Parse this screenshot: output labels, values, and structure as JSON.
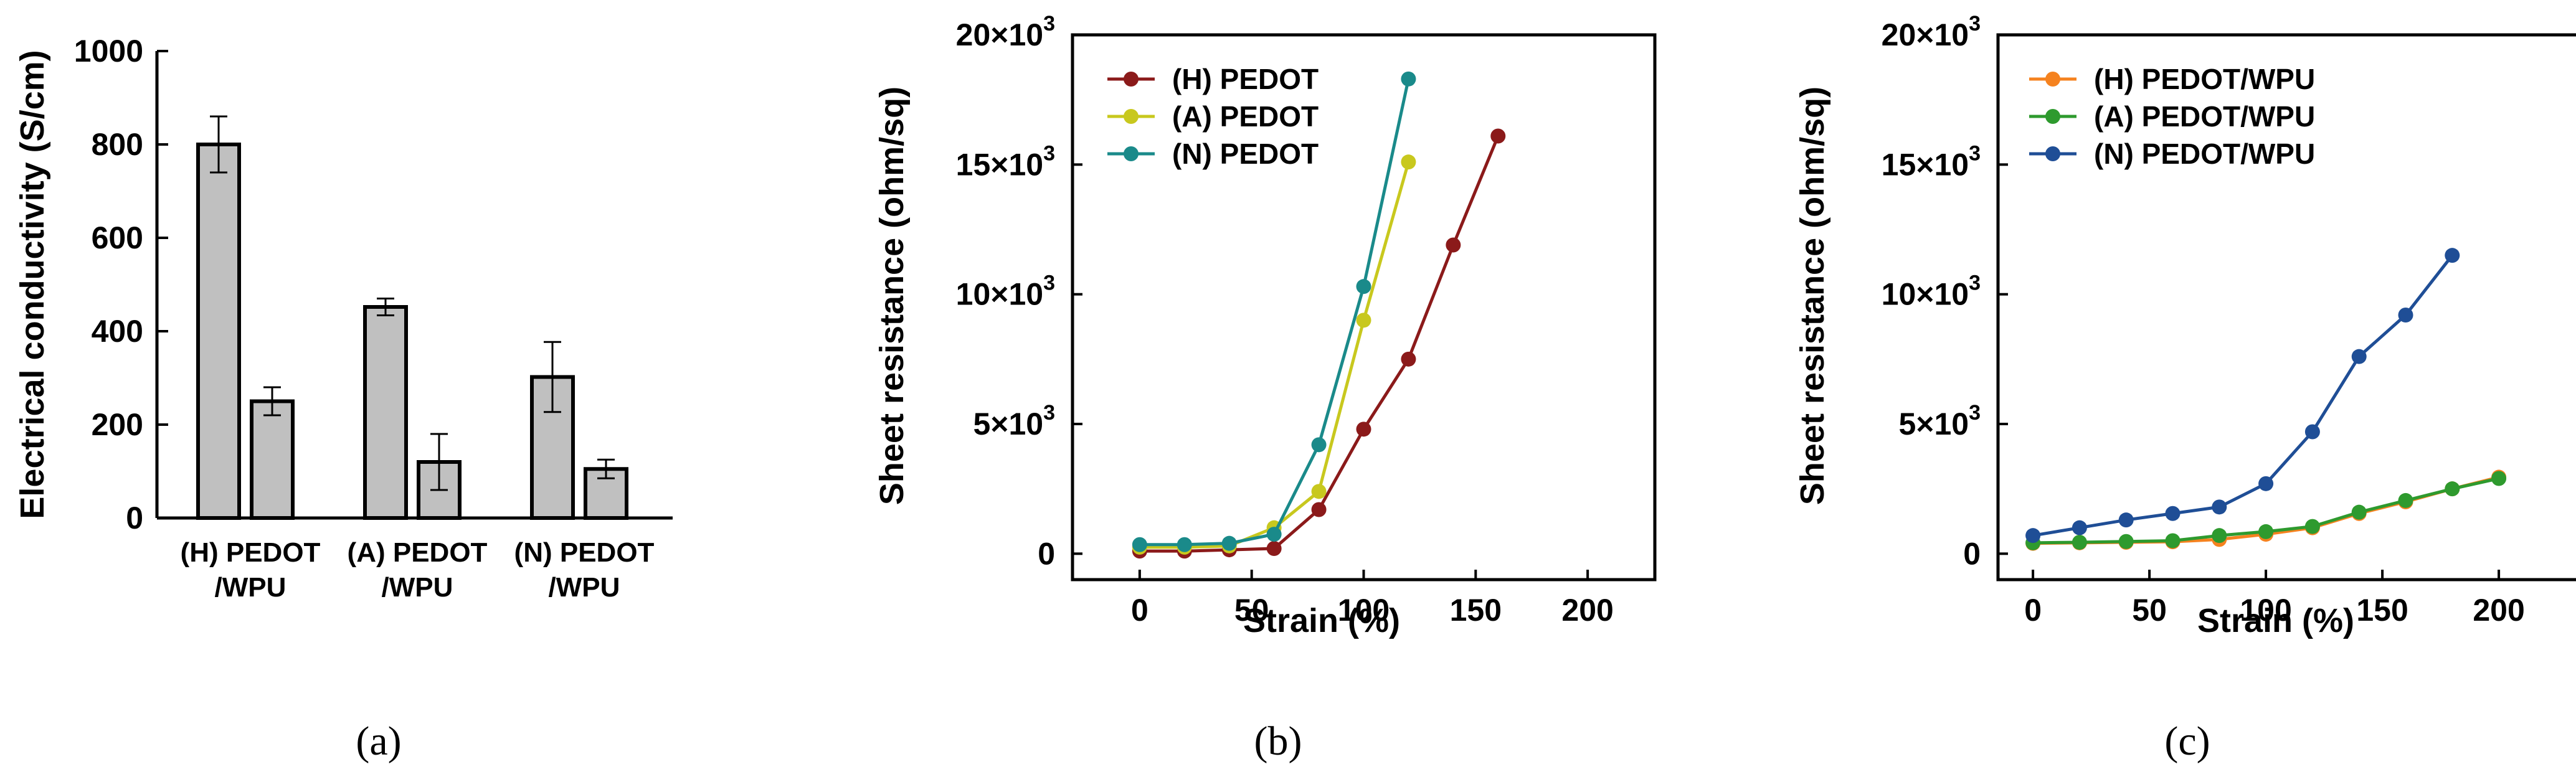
{
  "chart_data": [
    {
      "type": "bar",
      "panel_label": "(a)",
      "ylabel": "Electrical conductivity (S/cm)",
      "ylim": [
        0,
        1000
      ],
      "yticks": [
        "0",
        "200",
        "400",
        "600",
        "800",
        "1000"
      ],
      "categories": [
        {
          "line1": "(H) PEDOT",
          "line2": "/WPU"
        },
        {
          "line1": "(A) PEDOT",
          "line2": "/WPU"
        },
        {
          "line1": "(N) PEDOT",
          "line2": "/WPU"
        }
      ],
      "bars": [
        {
          "values": [
            800,
            250
          ],
          "errors": [
            60,
            30
          ]
        },
        {
          "values": [
            452,
            120
          ],
          "errors": [
            18,
            60
          ]
        },
        {
          "values": [
            302,
            105
          ],
          "errors": [
            75,
            20
          ]
        }
      ]
    },
    {
      "type": "line",
      "panel_label": "(b)",
      "xlabel": "Strain (%)",
      "ylabel": "Sheet resistance (ohm/sq)",
      "xlim": [
        -30,
        230
      ],
      "ylim": [
        -1000,
        20000
      ],
      "xticks": [
        "0",
        "50",
        "100",
        "150",
        "200"
      ],
      "yticks": [
        {
          "main": "0",
          "exp": ""
        },
        {
          "main": "5×10",
          "exp": "3"
        },
        {
          "main": "10×10",
          "exp": "3"
        },
        {
          "main": "15×10",
          "exp": "3"
        },
        {
          "main": "20×10",
          "exp": "3"
        }
      ],
      "series": [
        {
          "name": "(H) PEDOT",
          "color": "#8b1a1a",
          "x": [
            0,
            20,
            40,
            60,
            80,
            100,
            120,
            140,
            160
          ],
          "y": [
            100,
            100,
            150,
            200,
            1700,
            4800,
            7500,
            11900,
            16100
          ]
        },
        {
          "name": "(A) PEDOT",
          "color": "#c8c81e",
          "x": [
            0,
            20,
            40,
            60,
            80,
            100,
            120
          ],
          "y": [
            250,
            250,
            300,
            1000,
            2400,
            9000,
            15100
          ]
        },
        {
          "name": "(N) PEDOT",
          "color": "#1a8a8a",
          "x": [
            0,
            20,
            40,
            60,
            80,
            100,
            120
          ],
          "y": [
            350,
            350,
            400,
            750,
            4200,
            10300,
            18300
          ]
        }
      ]
    },
    {
      "type": "line",
      "panel_label": "(c)",
      "xlabel": "Strain (%)",
      "ylabel": "Sheet resistance (ohm/sq)",
      "xlim": [
        -15,
        235
      ],
      "ylim": [
        -1000,
        20000
      ],
      "xticks": [
        "0",
        "50",
        "100",
        "150",
        "200"
      ],
      "yticks": [
        {
          "main": "0",
          "exp": ""
        },
        {
          "main": "5×10",
          "exp": "3"
        },
        {
          "main": "10×10",
          "exp": "3"
        },
        {
          "main": "15×10",
          "exp": "3"
        },
        {
          "main": "20×10",
          "exp": "3"
        }
      ],
      "series": [
        {
          "name": "(H) PEDOT/WPU",
          "color": "#f5821f",
          "x": [
            0,
            20,
            40,
            60,
            80,
            100,
            120,
            140,
            160,
            180,
            200
          ],
          "y": [
            400,
            420,
            440,
            460,
            550,
            750,
            1000,
            1550,
            2000,
            2500,
            2950
          ]
        },
        {
          "name": "(A) PEDOT/WPU",
          "color": "#2e9a2e",
          "x": [
            0,
            20,
            40,
            60,
            80,
            100,
            120,
            140,
            160,
            180,
            200
          ],
          "y": [
            420,
            440,
            470,
            500,
            700,
            850,
            1050,
            1600,
            2050,
            2500,
            2900
          ]
        },
        {
          "name": "(N) PEDOT/WPU",
          "color": "#1f4e96",
          "x": [
            0,
            20,
            40,
            60,
            80,
            100,
            120,
            140,
            160,
            180
          ],
          "y": [
            700,
            1000,
            1300,
            1550,
            1800,
            2700,
            4700,
            7600,
            9200,
            11500
          ]
        }
      ]
    }
  ]
}
